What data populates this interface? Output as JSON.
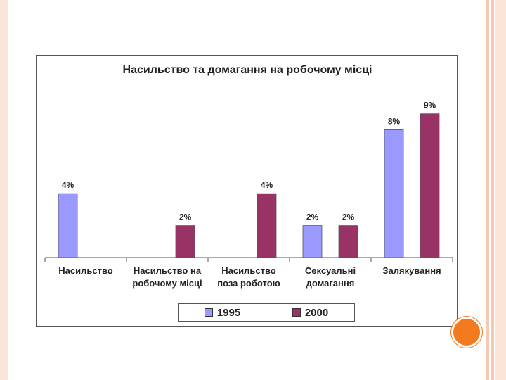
{
  "chart_data": {
    "type": "bar",
    "title": "Насильство та домагання на робочому місці",
    "categories": [
      [
        "Насильство"
      ],
      [
        "Насильство на",
        "робочому місці"
      ],
      [
        "Насильство",
        "поза роботою"
      ],
      [
        "Сексуальні",
        "домагання"
      ],
      [
        "Залякування"
      ]
    ],
    "series": [
      {
        "name": "1995",
        "color": "#9999ff",
        "values": [
          4,
          null,
          null,
          2,
          8
        ],
        "labels": [
          "4%",
          "",
          "",
          "2%",
          "8%"
        ]
      },
      {
        "name": "2000",
        "color": "#993366",
        "values": [
          null,
          2,
          4,
          2,
          9
        ],
        "labels": [
          "",
          "2%",
          "4%",
          "2%",
          "9%"
        ]
      }
    ],
    "ylim": [
      0,
      10
    ],
    "grid": false,
    "legend": "bottom"
  }
}
